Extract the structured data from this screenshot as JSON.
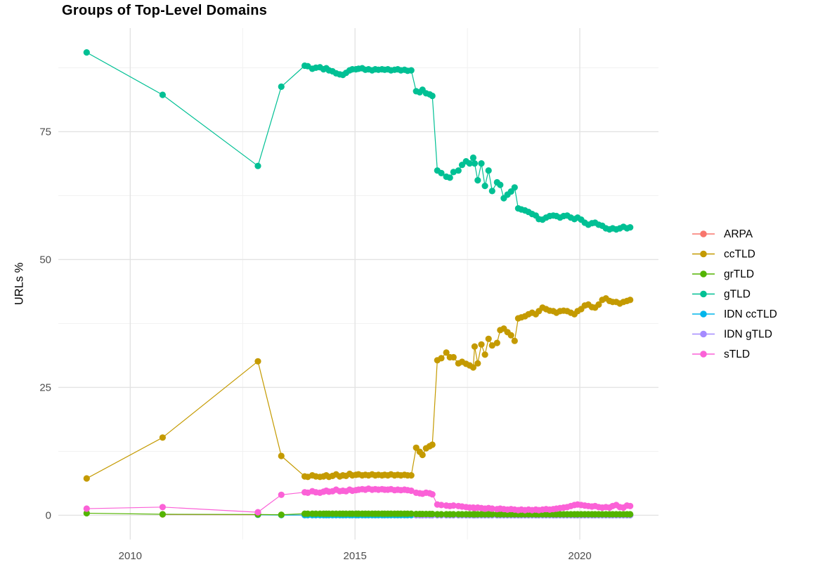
{
  "chart_data": {
    "type": "line",
    "title": "Groups of Top-Level Domains",
    "xlabel": "",
    "ylabel": "URLs %",
    "grid": "major+minor",
    "legend_position": "right",
    "xlim": [
      2008.4,
      2021.75
    ],
    "ylim": [
      -4.75,
      95.25
    ],
    "x_ticks": [
      2010,
      2015,
      2020
    ],
    "x_grid_minor": [
      2012.5,
      2017.5
    ],
    "y_ticks": [
      0,
      25,
      50,
      75
    ],
    "y_grid_minor": [
      12.5,
      37.5,
      62.5,
      87.5
    ],
    "x_dense": [
      2013.88,
      2013.95,
      2014.05,
      2014.13,
      2014.22,
      2014.3,
      2014.36,
      2014.42,
      2014.5,
      2014.58,
      2014.66,
      2014.73,
      2014.8,
      2014.88,
      2014.94,
      2015.02,
      2015.08,
      2015.16,
      2015.23,
      2015.3,
      2015.38,
      2015.45,
      2015.52,
      2015.6,
      2015.66,
      2015.73,
      2015.8,
      2015.88,
      2015.95,
      2016.02,
      2016.1,
      2016.17,
      2016.25,
      2016.36,
      2016.44,
      2016.5,
      2016.58,
      2016.66,
      2016.72,
      2016.83,
      2016.92,
      2017.03,
      2017.11,
      2017.19,
      2017.3,
      2017.38,
      2017.47,
      2017.55,
      2017.63,
      2017.66,
      2017.73,
      2017.81,
      2017.89,
      2017.97,
      2018.05,
      2018.16,
      2018.23,
      2018.31,
      2018.39,
      2018.47,
      2018.55,
      2018.63,
      2018.7,
      2018.78,
      2018.86,
      2018.94,
      2019.02,
      2019.09,
      2019.17,
      2019.25,
      2019.33,
      2019.41,
      2019.48,
      2019.56,
      2019.64,
      2019.72,
      2019.8,
      2019.88,
      2019.95,
      2020.03,
      2020.11,
      2020.19,
      2020.27,
      2020.34,
      2020.42,
      2020.5,
      2020.58,
      2020.66,
      2020.73,
      2020.81,
      2020.89,
      2020.97,
      2021.05,
      2021.12
    ],
    "series": [
      {
        "name": "ARPA",
        "color": "#F8766D",
        "z": 1,
        "early": [
          [
            2010.72,
            0.15
          ],
          [
            2012.84,
            0.1
          ],
          [
            2013.36,
            0.06
          ]
        ],
        "dense_const": 0.05,
        "dense_from": 0
      },
      {
        "name": "ccTLD",
        "color": "#C49A00",
        "z": 5,
        "early": [
          [
            2009.03,
            7.2
          ],
          [
            2010.72,
            15.2
          ],
          [
            2012.84,
            30.1
          ],
          [
            2013.36,
            11.6
          ]
        ],
        "values": [
          7.6,
          7.5,
          7.8,
          7.6,
          7.5,
          7.6,
          7.8,
          7.5,
          7.7,
          8.0,
          7.6,
          7.8,
          7.7,
          8.1,
          7.8,
          7.9,
          8.0,
          7.8,
          7.9,
          7.8,
          8.0,
          7.8,
          7.9,
          7.8,
          7.9,
          7.8,
          8.0,
          7.8,
          7.9,
          7.8,
          7.9,
          7.8,
          7.8,
          13.2,
          12.4,
          11.8,
          13.1,
          13.5,
          13.8,
          30.3,
          30.7,
          31.8,
          30.9,
          30.9,
          29.7,
          30.0,
          29.6,
          29.3,
          28.9,
          33.0,
          29.7,
          33.4,
          31.4,
          34.5,
          33.2,
          33.7,
          36.2,
          36.5,
          35.8,
          35.2,
          34.1,
          38.5,
          38.7,
          38.9,
          39.3,
          39.6,
          39.3,
          39.9,
          40.6,
          40.3,
          40.0,
          39.9,
          39.6,
          39.9,
          40.0,
          39.9,
          39.6,
          39.3,
          39.9,
          40.3,
          41.0,
          41.2,
          40.7,
          40.6,
          41.2,
          42.1,
          42.4,
          41.9,
          41.7,
          41.7,
          41.4,
          41.7,
          41.9,
          42.1
        ]
      },
      {
        "name": "grTLD",
        "color": "#53B400",
        "z": 4,
        "early": [
          [
            2009.03,
            0.4
          ],
          [
            2010.72,
            0.2
          ],
          [
            2012.84,
            0.15
          ],
          [
            2013.36,
            0.1
          ]
        ],
        "segments": [
          {
            "from": 0,
            "to": 33,
            "const": 0.3
          },
          {
            "from": 33,
            "to": 39,
            "const": 0.25
          },
          {
            "from": 39,
            "to": 94,
            "const": 0.2
          }
        ]
      },
      {
        "name": "gTLD",
        "color": "#00C094",
        "z": 6,
        "early": [
          [
            2009.03,
            90.5
          ],
          [
            2010.72,
            82.2
          ],
          [
            2012.84,
            68.3
          ],
          [
            2013.36,
            83.8
          ]
        ],
        "values": [
          87.9,
          87.8,
          87.3,
          87.5,
          87.6,
          87.2,
          87.4,
          87.0,
          86.8,
          86.4,
          86.2,
          86.1,
          86.5,
          87.0,
          87.2,
          87.2,
          87.3,
          87.4,
          87.1,
          87.2,
          87.0,
          87.2,
          87.1,
          87.2,
          87.1,
          87.2,
          87.0,
          87.1,
          87.2,
          87.0,
          87.1,
          86.9,
          87.0,
          82.9,
          82.7,
          83.2,
          82.5,
          82.3,
          82.0,
          67.4,
          66.9,
          66.2,
          66.0,
          67.1,
          67.4,
          68.5,
          69.2,
          68.8,
          69.9,
          68.8,
          65.5,
          68.8,
          64.4,
          67.4,
          63.4,
          65.1,
          64.6,
          62.0,
          62.7,
          63.3,
          64.1,
          60.0,
          59.8,
          59.6,
          59.3,
          58.9,
          58.6,
          57.9,
          57.8,
          58.2,
          58.5,
          58.6,
          58.5,
          58.2,
          58.5,
          58.6,
          58.2,
          57.9,
          58.2,
          57.8,
          57.2,
          56.8,
          57.1,
          57.2,
          56.8,
          56.6,
          56.1,
          55.9,
          56.1,
          55.9,
          56.1,
          56.4,
          56.1,
          56.3
        ]
      },
      {
        "name": "IDN ccTLD",
        "color": "#00B6EB",
        "z": 2,
        "early": [
          [
            2012.84,
            0.1
          ],
          [
            2013.36,
            0.04
          ]
        ],
        "dense_const": 0.03,
        "dense_from": 0
      },
      {
        "name": "IDN gTLD",
        "color": "#A58AFF",
        "z": 3,
        "early": [],
        "dense_const": 0.02,
        "dense_from": 33
      },
      {
        "name": "sTLD",
        "color": "#FB61D7",
        "z": 7,
        "early": [
          [
            2009.03,
            1.3
          ],
          [
            2010.72,
            1.6
          ],
          [
            2012.84,
            0.6
          ],
          [
            2013.36,
            4.0
          ]
        ],
        "values": [
          4.5,
          4.4,
          4.7,
          4.5,
          4.4,
          4.6,
          4.8,
          4.6,
          4.7,
          5.0,
          4.7,
          4.8,
          4.7,
          5.0,
          4.8,
          4.9,
          5.0,
          5.1,
          5.0,
          5.2,
          5.0,
          5.1,
          5.0,
          5.1,
          5.0,
          5.0,
          5.1,
          4.9,
          5.0,
          4.9,
          5.0,
          4.9,
          4.8,
          4.4,
          4.3,
          4.2,
          4.4,
          4.3,
          4.1,
          2.1,
          2.0,
          1.9,
          1.8,
          1.9,
          1.8,
          1.7,
          1.6,
          1.5,
          1.5,
          1.4,
          1.5,
          1.4,
          1.3,
          1.4,
          1.3,
          1.2,
          1.3,
          1.2,
          1.1,
          1.2,
          1.1,
          1.0,
          1.1,
          1.0,
          1.1,
          1.0,
          1.1,
          1.0,
          1.1,
          1.2,
          1.1,
          1.2,
          1.3,
          1.4,
          1.5,
          1.6,
          1.8,
          2.0,
          2.1,
          2.0,
          1.9,
          1.8,
          1.7,
          1.8,
          1.6,
          1.5,
          1.6,
          1.5,
          1.8,
          2.0,
          1.6,
          1.5,
          1.9,
          1.8
        ]
      }
    ]
  }
}
